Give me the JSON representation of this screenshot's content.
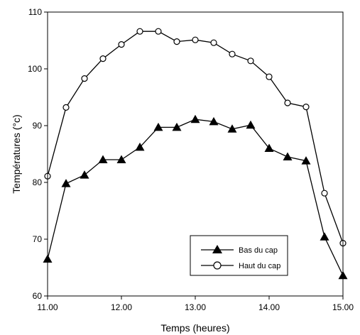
{
  "chart_data": {
    "type": "line",
    "xlabel": "Temps (heures)",
    "ylabel": "Températures (°c)",
    "xlim": [
      11.0,
      15.0
    ],
    "ylim": [
      60,
      110
    ],
    "x_ticks": [
      11.0,
      12.0,
      13.0,
      14.0,
      15.0
    ],
    "x_tick_labels": [
      "11.00",
      "12.00",
      "13.00",
      "14.00",
      "15.00"
    ],
    "y_ticks": [
      60,
      70,
      80,
      90,
      100,
      110
    ],
    "y_tick_labels": [
      "60",
      "70",
      "80",
      "90",
      "100",
      "110"
    ],
    "grid": false,
    "legend_position": "bottom-right",
    "series": [
      {
        "name": "Bas du cap",
        "marker": "filled-triangle",
        "color": "#000000",
        "x": [
          11.0,
          11.25,
          11.5,
          11.75,
          12.0,
          12.25,
          12.5,
          12.75,
          13.0,
          13.25,
          13.5,
          13.75,
          14.0,
          14.25,
          14.5,
          14.75,
          15.0
        ],
        "y": [
          66.5,
          79.8,
          81.3,
          84.0,
          84.0,
          86.2,
          89.7,
          89.7,
          91.1,
          90.7,
          89.4,
          90.1,
          86.0,
          84.5,
          83.8,
          70.4,
          63.6
        ]
      },
      {
        "name": "Haut du cap",
        "marker": "open-circle",
        "color": "#000000",
        "x": [
          11.0,
          11.25,
          11.5,
          11.75,
          12.0,
          12.25,
          12.5,
          12.75,
          13.0,
          13.25,
          13.5,
          13.75,
          14.0,
          14.25,
          14.5,
          14.75,
          15.0
        ],
        "y": [
          81.1,
          93.2,
          98.3,
          101.8,
          104.3,
          106.6,
          106.6,
          104.8,
          105.1,
          104.6,
          102.6,
          101.4,
          98.6,
          94.0,
          93.3,
          78.1,
          69.3
        ]
      }
    ]
  }
}
